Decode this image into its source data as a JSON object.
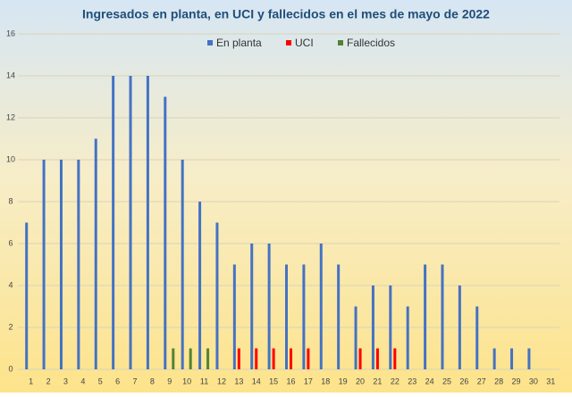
{
  "chart_data": {
    "type": "bar",
    "title": "Ingresados en planta, en UCI y fallecidos en el mes de mayo de 2022",
    "categories": [
      "1",
      "2",
      "3",
      "4",
      "5",
      "6",
      "7",
      "8",
      "9",
      "10",
      "11",
      "12",
      "13",
      "14",
      "15",
      "16",
      "17",
      "18",
      "19",
      "20",
      "21",
      "22",
      "23",
      "24",
      "25",
      "26",
      "27",
      "28",
      "29",
      "30",
      "31"
    ],
    "series": [
      {
        "name": "En planta",
        "color": "#4472c4",
        "values": [
          7,
          10,
          10,
          10,
          11,
          14,
          14,
          14,
          13,
          10,
          8,
          7,
          5,
          6,
          6,
          5,
          5,
          6,
          5,
          3,
          4,
          4,
          3,
          5,
          5,
          4,
          3,
          1,
          1,
          1,
          0
        ]
      },
      {
        "name": "UCI",
        "color": "#ff0000",
        "values": [
          0,
          0,
          0,
          0,
          0,
          0,
          0,
          0,
          0,
          0,
          0,
          0,
          1,
          1,
          1,
          1,
          1,
          0,
          0,
          1,
          1,
          1,
          0,
          0,
          0,
          0,
          0,
          0,
          0,
          0,
          0
        ]
      },
      {
        "name": "Fallecidos",
        "color": "#548235",
        "values": [
          0,
          0,
          0,
          0,
          0,
          0,
          0,
          0,
          1,
          1,
          1,
          0,
          0,
          0,
          0,
          0,
          0,
          0,
          0,
          0,
          0,
          0,
          0,
          0,
          0,
          0,
          0,
          0,
          0,
          0,
          0
        ]
      }
    ],
    "ylim": [
      0,
      16
    ],
    "yticks": [
      0,
      2,
      4,
      6,
      8,
      10,
      12,
      14,
      16
    ],
    "grid": true,
    "legend": "top"
  }
}
